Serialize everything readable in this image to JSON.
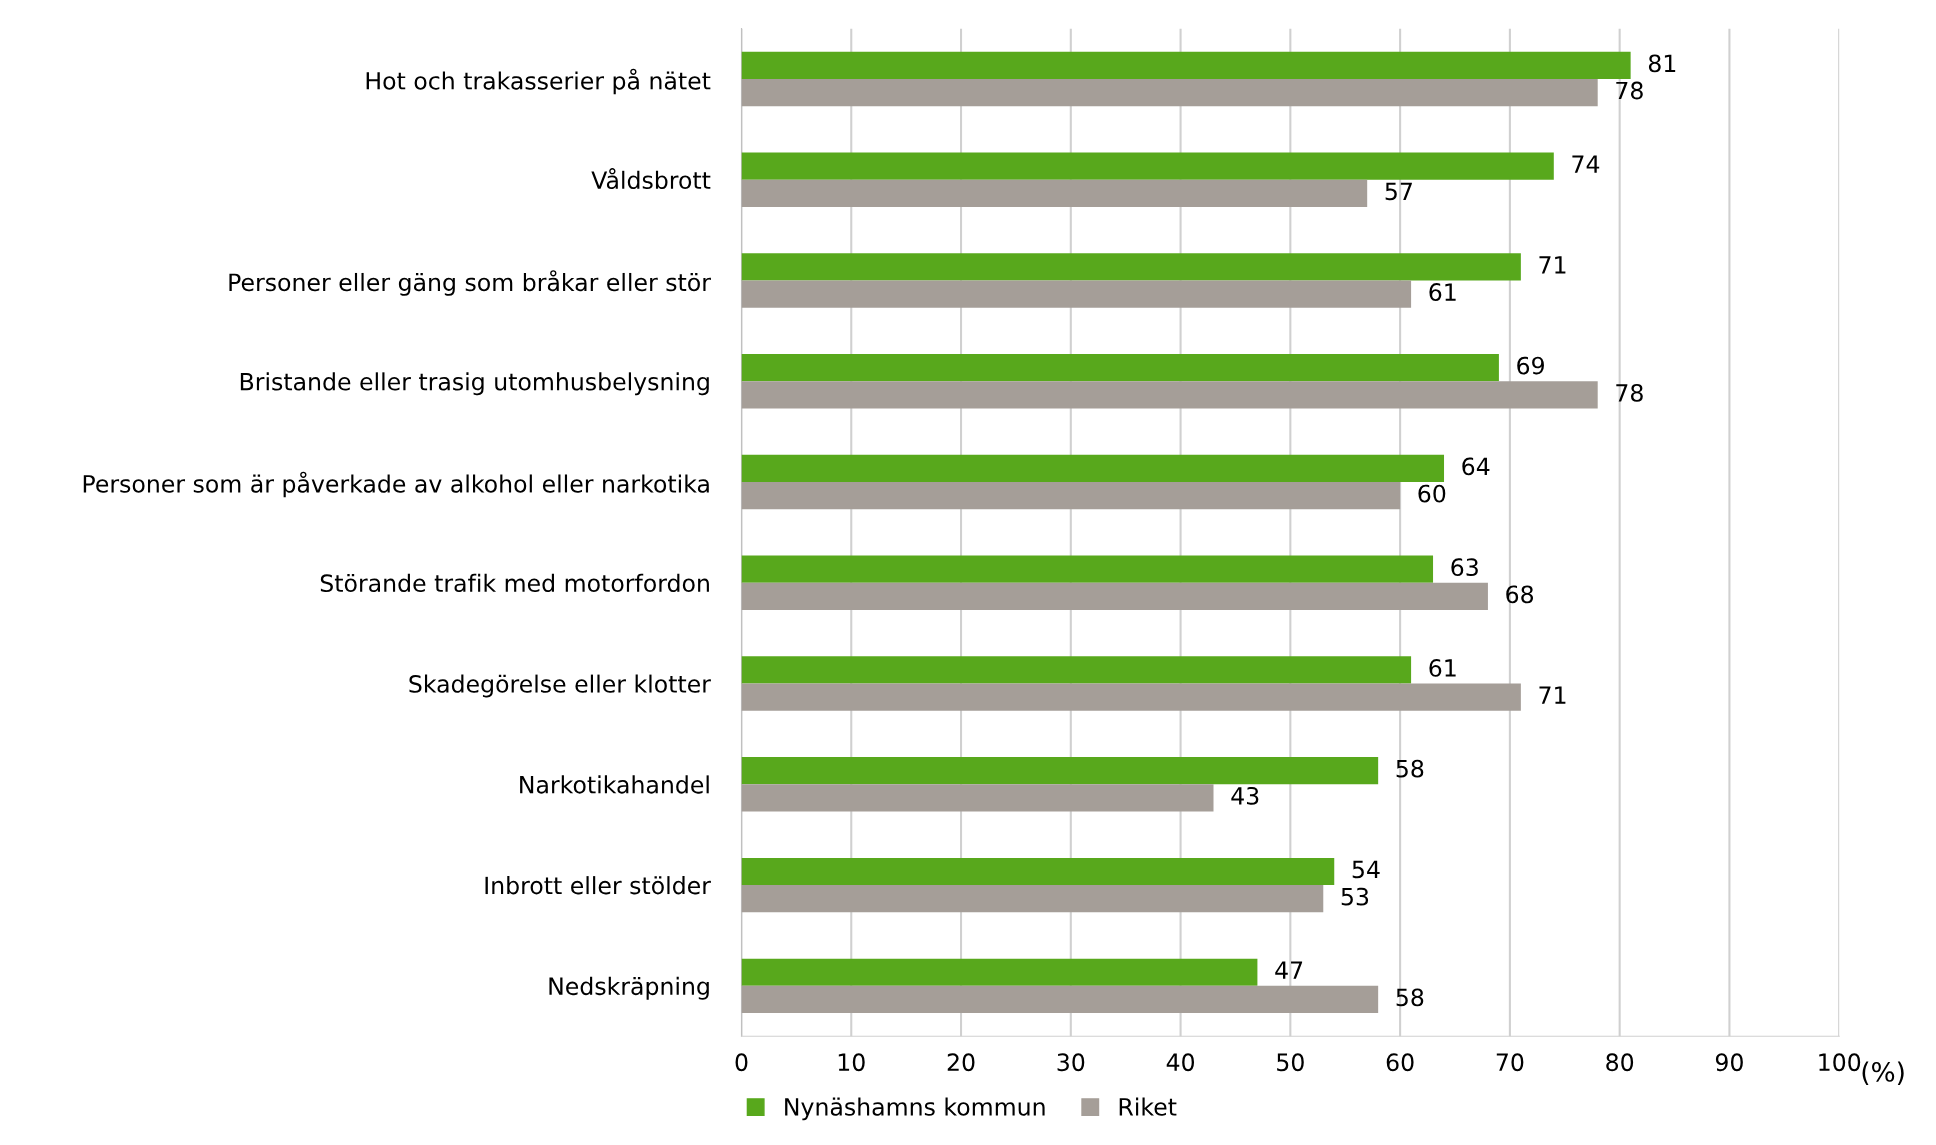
{
  "chart_data": {
    "type": "bar",
    "orientation": "horizontal",
    "xlabel": "(%)",
    "categories": [
      "Hot och trakasserier på nätet",
      "Våldsbrott",
      "Personer eller gäng som bråkar eller stör",
      "Bristande eller trasig utomhusbelysning",
      "Personer som är påverkade av alkohol eller narkotika",
      "Störande trafik med motorfordon",
      "Skadegörelse eller klotter",
      "Narkotikahandel",
      "Inbrott eller stölder",
      "Nedskräpning"
    ],
    "series": [
      {
        "name": "Nynäshamns kommun",
        "color": "#58a81c",
        "values": [
          81,
          74,
          71,
          69,
          64,
          63,
          61,
          58,
          54,
          47
        ]
      },
      {
        "name": "Riket",
        "color": "#a59e98",
        "values": [
          78,
          57,
          61,
          78,
          60,
          68,
          71,
          43,
          53,
          58
        ]
      }
    ],
    "xlim": [
      0,
      100
    ],
    "xticks": [
      0,
      10,
      20,
      30,
      40,
      50,
      60,
      70,
      80,
      90,
      100
    ],
    "grid": "x",
    "legend": "bottom",
    "data_labels": true
  }
}
